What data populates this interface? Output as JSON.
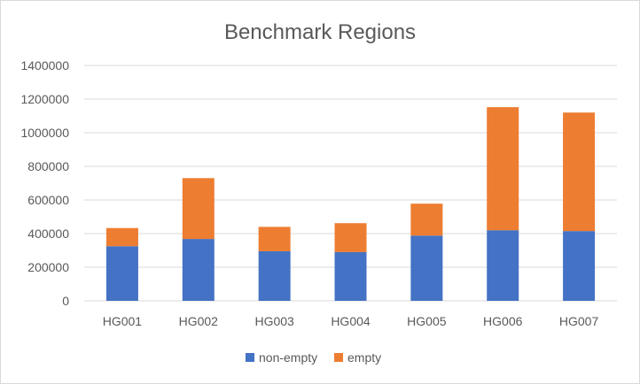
{
  "chart_data": {
    "type": "bar",
    "stacked": true,
    "title": "Benchmark Regions",
    "xlabel": "",
    "ylabel": "",
    "categories": [
      "HG001",
      "HG002",
      "HG003",
      "HG004",
      "HG005",
      "HG006",
      "HG007"
    ],
    "series": [
      {
        "name": "non-empty",
        "color": "#4472C4",
        "values": [
          325000,
          368000,
          295000,
          290000,
          388000,
          420000,
          415000
        ]
      },
      {
        "name": "empty",
        "color": "#ED7D31",
        "values": [
          108000,
          362000,
          145000,
          172000,
          190000,
          732000,
          705000
        ]
      }
    ],
    "ylim": [
      0,
      1400000
    ],
    "yticks": [
      "0",
      "200000",
      "400000",
      "600000",
      "800000",
      "1000000",
      "1200000",
      "1400000"
    ],
    "grid": true,
    "legend": "bottom"
  }
}
